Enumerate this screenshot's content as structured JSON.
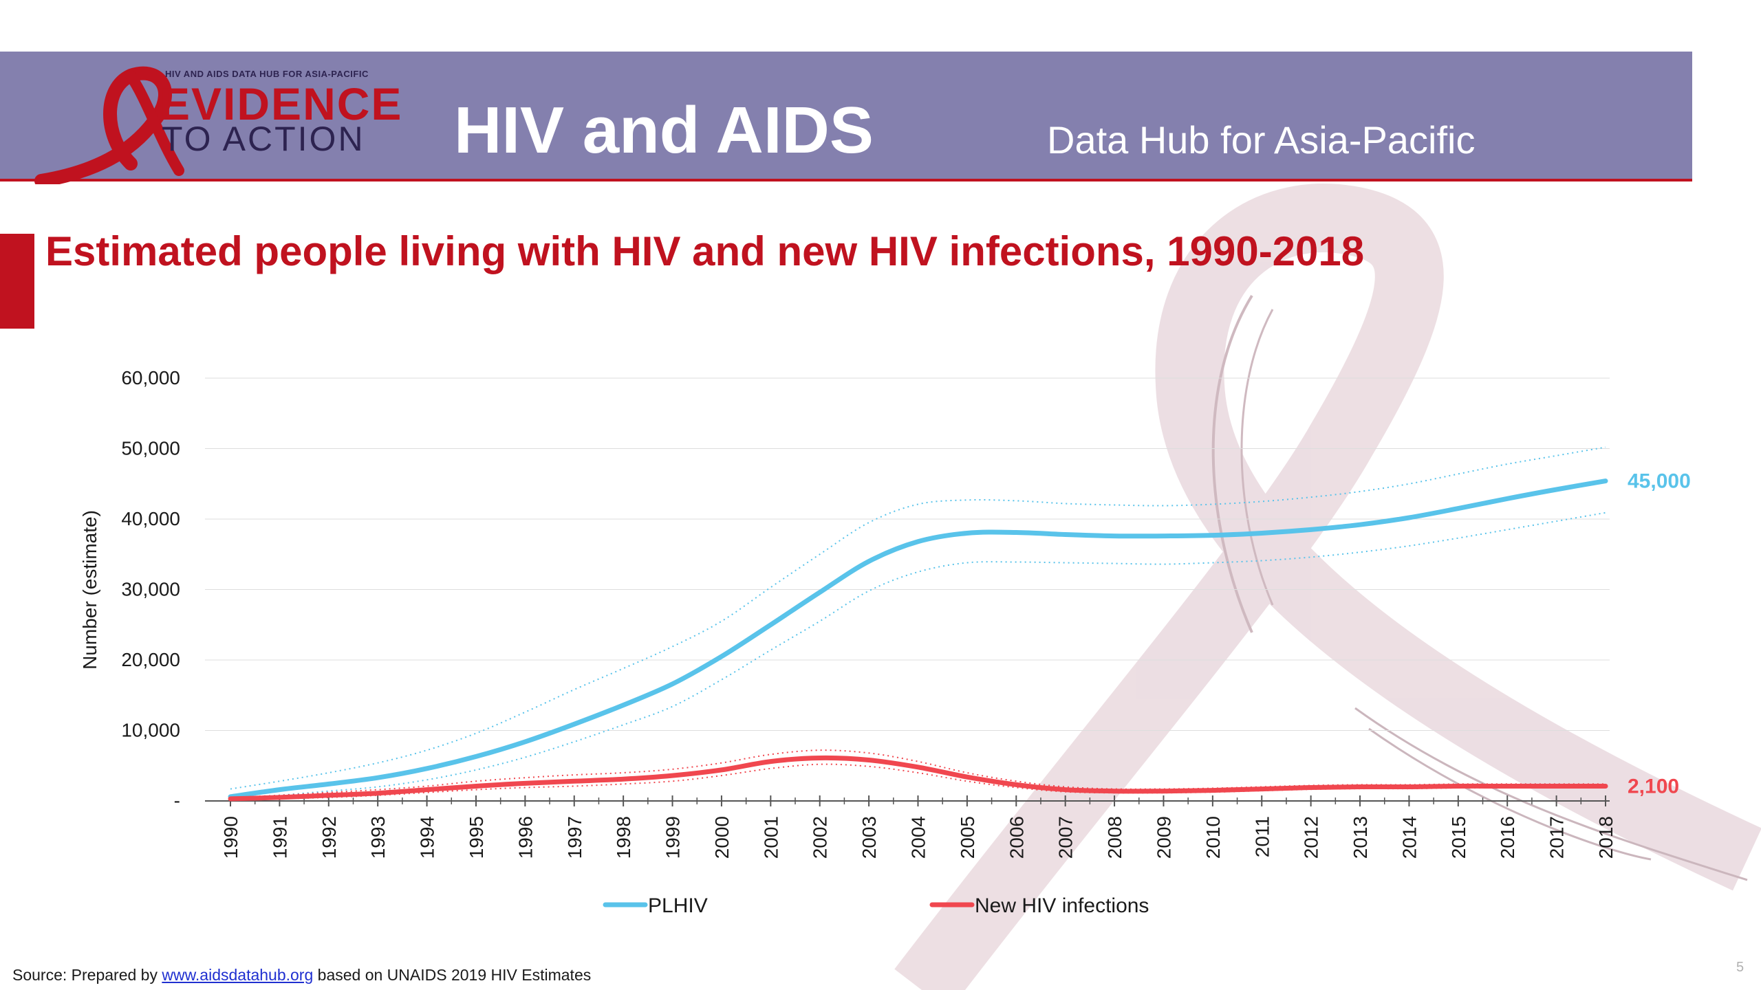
{
  "header": {
    "logo_small": "HIV AND AIDS DATA HUB FOR ASIA-PACIFIC",
    "logo_line1": "EVIDENCE",
    "logo_line2": "TO ACTION",
    "title": "HIV and AIDS",
    "subtitle": "Data Hub for Asia-Pacific"
  },
  "slide_title": "Estimated people living with HIV and new HIV infections, 1990-2018",
  "chart_data": {
    "type": "line",
    "ylabel": "Number (estimate)",
    "ylim": [
      0,
      60000
    ],
    "y_ticks": [
      {
        "value": 0,
        "label": "-"
      },
      {
        "value": 10000,
        "label": "10,000"
      },
      {
        "value": 20000,
        "label": "20,000"
      },
      {
        "value": 30000,
        "label": "30,000"
      },
      {
        "value": 40000,
        "label": "40,000"
      },
      {
        "value": 50000,
        "label": "50,000"
      },
      {
        "value": 60000,
        "label": "60,000"
      }
    ],
    "grid": true,
    "legend_position": "bottom",
    "x": [
      "1990",
      "1991",
      "1992",
      "1993",
      "1994",
      "1995",
      "1996",
      "1997",
      "1998",
      "1999",
      "2000",
      "2001",
      "2002",
      "2003",
      "2004",
      "2005",
      "2006",
      "2007",
      "2008",
      "2009",
      "2010",
      "2011",
      "2012",
      "2013",
      "2014",
      "2015",
      "2016",
      "2017",
      "2018"
    ],
    "series": [
      {
        "name": "PLHIV",
        "color": "#59c3ea",
        "values": [
          600,
          1600,
          2400,
          3300,
          4600,
          6300,
          8400,
          10900,
          13600,
          16600,
          20500,
          25000,
          29600,
          34000,
          36800,
          38000,
          38100,
          37800,
          37600,
          37600,
          37700,
          38000,
          38500,
          39200,
          40200,
          41500,
          42900,
          44200,
          45400
        ],
        "upper": [
          1700,
          2800,
          4000,
          5400,
          7200,
          9600,
          12600,
          15800,
          18800,
          21900,
          25500,
          30300,
          35000,
          39500,
          42100,
          42700,
          42600,
          42200,
          42000,
          41900,
          42100,
          42500,
          43100,
          43900,
          45000,
          46400,
          47800,
          49000,
          50200
        ],
        "lower": [
          200,
          800,
          1400,
          2000,
          3000,
          4400,
          6200,
          8400,
          10800,
          13400,
          17200,
          21400,
          25500,
          29800,
          32500,
          33800,
          33900,
          33800,
          33700,
          33600,
          33800,
          34100,
          34600,
          35300,
          36200,
          37300,
          38500,
          39700,
          40900
        ],
        "end_label": "45,000"
      },
      {
        "name": "New HIV infections",
        "color": "#f0474f",
        "values": [
          300,
          500,
          800,
          1100,
          1600,
          2100,
          2500,
          2800,
          3100,
          3600,
          4400,
          5600,
          6100,
          5800,
          4800,
          3400,
          2300,
          1600,
          1400,
          1400,
          1500,
          1700,
          1900,
          2000,
          2000,
          2100,
          2100,
          2100,
          2100
        ],
        "upper": [
          500,
          800,
          1200,
          1600,
          2100,
          2800,
          3300,
          3700,
          4000,
          4500,
          5400,
          6600,
          7200,
          6800,
          5600,
          4000,
          2800,
          2000,
          1700,
          1700,
          1800,
          2000,
          2200,
          2300,
          2300,
          2400,
          2400,
          2400,
          2400
        ],
        "lower": [
          150,
          300,
          500,
          800,
          1200,
          1600,
          1900,
          2100,
          2400,
          2800,
          3600,
          4600,
          5200,
          4900,
          4000,
          2800,
          1900,
          1300,
          1150,
          1150,
          1250,
          1450,
          1650,
          1750,
          1750,
          1850,
          1850,
          1850,
          1850
        ],
        "end_label": "2,100"
      }
    ]
  },
  "source": {
    "prefix": "Source: Prepared by ",
    "link_text": "www.aidsdatahub.org",
    "suffix": "  based on UNAIDS 2019 HIV Estimates"
  },
  "page_number": "5"
}
